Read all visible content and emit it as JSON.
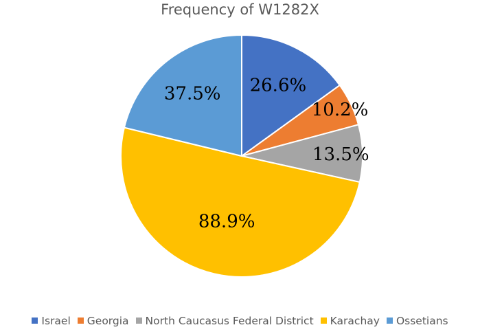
{
  "chart_data": {
    "type": "pie",
    "title": "Frequency of W1282X",
    "categories": [
      "Israel",
      "Georgia",
      "North Caucasus Federal District",
      "Karachay",
      "Ossetians"
    ],
    "values": [
      26.6,
      10.2,
      13.5,
      88.9,
      37.5
    ],
    "labels": [
      "26.6%",
      "10.2%",
      "13.5%",
      "88.9%",
      "37.5%"
    ],
    "colors": [
      "#4472C4",
      "#ED7D31",
      "#A5A5A5",
      "#FFC000",
      "#5B9BD5"
    ],
    "legend_position": "bottom"
  }
}
